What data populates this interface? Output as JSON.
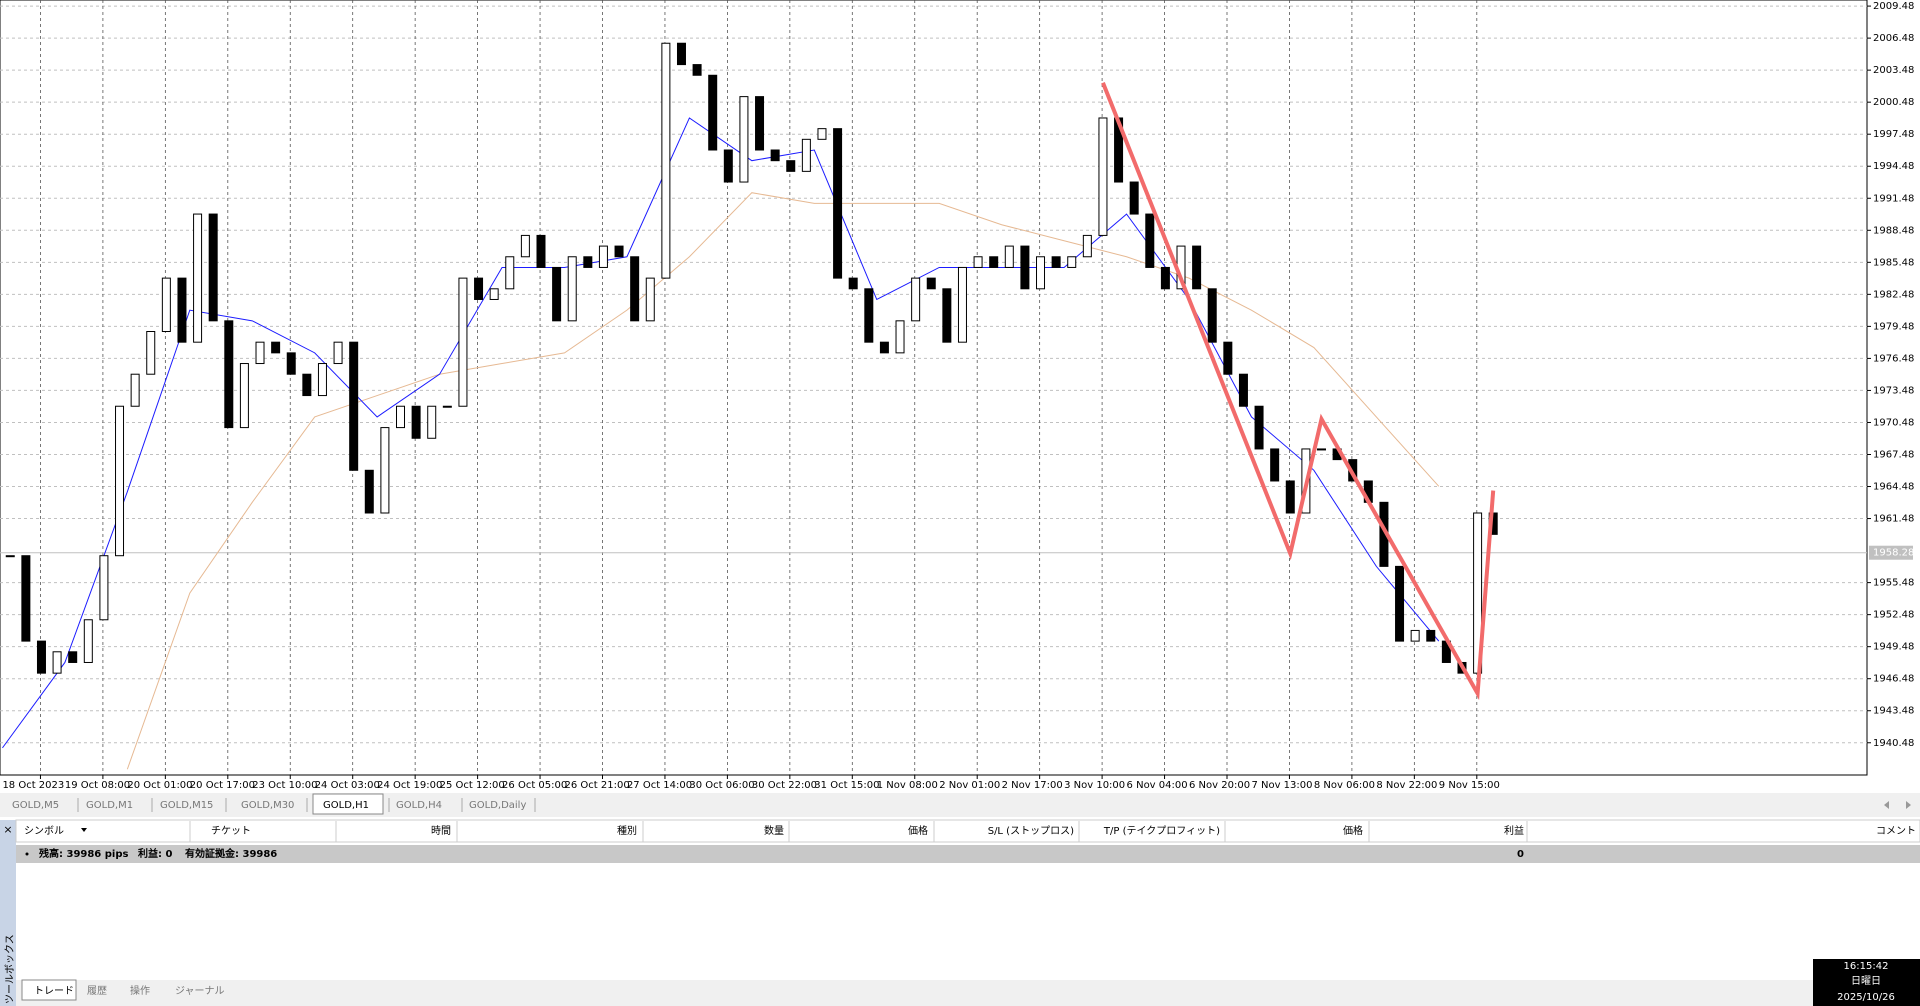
{
  "chart": {
    "type": "candlestick",
    "ylim": [
      1937.46,
      2010.05
    ],
    "yticks": [
      2009.48,
      2006.48,
      2003.48,
      2000.48,
      1997.48,
      1994.48,
      1991.48,
      1988.48,
      1985.48,
      1982.48,
      1979.48,
      1976.48,
      1973.48,
      1970.48,
      1967.48,
      1964.48,
      1961.48,
      1955.48,
      1952.48,
      1949.48,
      1946.48,
      1943.48,
      1940.48
    ],
    "xlabels": [
      "18 Oct 2023",
      "19 Oct 08:00",
      "20 Oct 01:00",
      "20 Oct 17:00",
      "23 Oct 10:00",
      "24 Oct 03:00",
      "24 Oct 19:00",
      "25 Oct 12:00",
      "26 Oct 05:00",
      "26 Oct 21:00",
      "27 Oct 14:00",
      "30 Oct 06:00",
      "30 Oct 22:00",
      "31 Oct 15:00",
      "1 Nov 08:00",
      "2 Nov 01:00",
      "2 Nov 17:00",
      "3 Nov 10:00",
      "6 Nov 04:00",
      "6 Nov 20:00",
      "7 Nov 13:00",
      "8 Nov 06:00",
      "8 Nov 22:00",
      "9 Nov 15:00"
    ],
    "closes": [
      1958,
      1950,
      1947,
      1949,
      1948,
      1952,
      1958,
      1972,
      1975,
      1979,
      1984,
      1978,
      1990,
      1980,
      1970,
      1976,
      1978,
      1977,
      1975,
      1973,
      1976,
      1978,
      1966,
      1962,
      1970,
      1972,
      1969,
      1972,
      1972,
      1984,
      1982,
      1983,
      1986,
      1988,
      1985,
      1980,
      1986,
      1985,
      1987,
      1986,
      1980,
      1984,
      2006,
      2004,
      2003,
      1996,
      1993,
      2001,
      1996,
      1995,
      1994,
      1997,
      1998,
      1984,
      1983,
      1978,
      1977,
      1980,
      1984,
      1983,
      1978,
      1985,
      1986,
      1985,
      1987,
      1983,
      1986,
      1985,
      1986,
      1988,
      1999,
      1993,
      1990,
      1985,
      1983,
      1987,
      1983,
      1978,
      1975,
      1972,
      1968,
      1965,
      1962,
      1968,
      1968,
      1967,
      1965,
      1963,
      1957,
      1950,
      1951,
      1950,
      1948,
      1947,
      1962,
      1960
    ],
    "ma_fast": {
      "color": "#1c1cff",
      "values": [
        1940,
        1948,
        1964,
        1981,
        1980,
        1977,
        1971,
        1975,
        1985,
        1985,
        1986,
        1999,
        1995,
        1996,
        1982,
        1985,
        1985,
        1985,
        1990,
        1982,
        1971,
        1966,
        1957,
        1950
      ]
    },
    "ma_slow": {
      "color": "#e6b993",
      "values": [
        null,
        null,
        1938,
        1954.5,
        1963,
        1971,
        1973,
        1975,
        1976,
        1977,
        1981,
        1986,
        1992,
        1991,
        1991,
        1991,
        1989,
        1987.5,
        1986,
        1984,
        1981,
        1977.5,
        1971,
        1964.5
      ]
    },
    "zigzag": {
      "color": "#f26b6b",
      "x": [
        70,
        82,
        84,
        94,
        95
      ],
      "values": [
        2002.3,
        1958.2,
        1970.8,
        1945.1,
        1964.1
      ]
    },
    "current_price": 1958.28,
    "grid": true
  },
  "chart_tabs": {
    "items": [
      "GOLD,M5",
      "GOLD,M1",
      "GOLD,M15",
      "GOLD,M30",
      "GOLD,H1",
      "GOLD,H4",
      "GOLD,Daily"
    ],
    "active": 4
  },
  "terminal": {
    "headers": [
      "シンボル",
      "チケット",
      "時間",
      "種別",
      "数量",
      "価格",
      "S/L (ストップロス)",
      "T/P (テイクプロフィット)",
      "価格",
      "利益",
      "コメント"
    ],
    "account": [
      "残高: 39986 pips",
      "利益: 0",
      "有効証拠金: 39986"
    ],
    "total_profit": 0,
    "tabs": [
      "トレード",
      "履歴",
      "操作",
      "ジャーナル"
    ],
    "side_label": "ツールボックス"
  },
  "clock": {
    "time": "16:15:42",
    "day": "日曜日",
    "date": "2025/10/26"
  }
}
